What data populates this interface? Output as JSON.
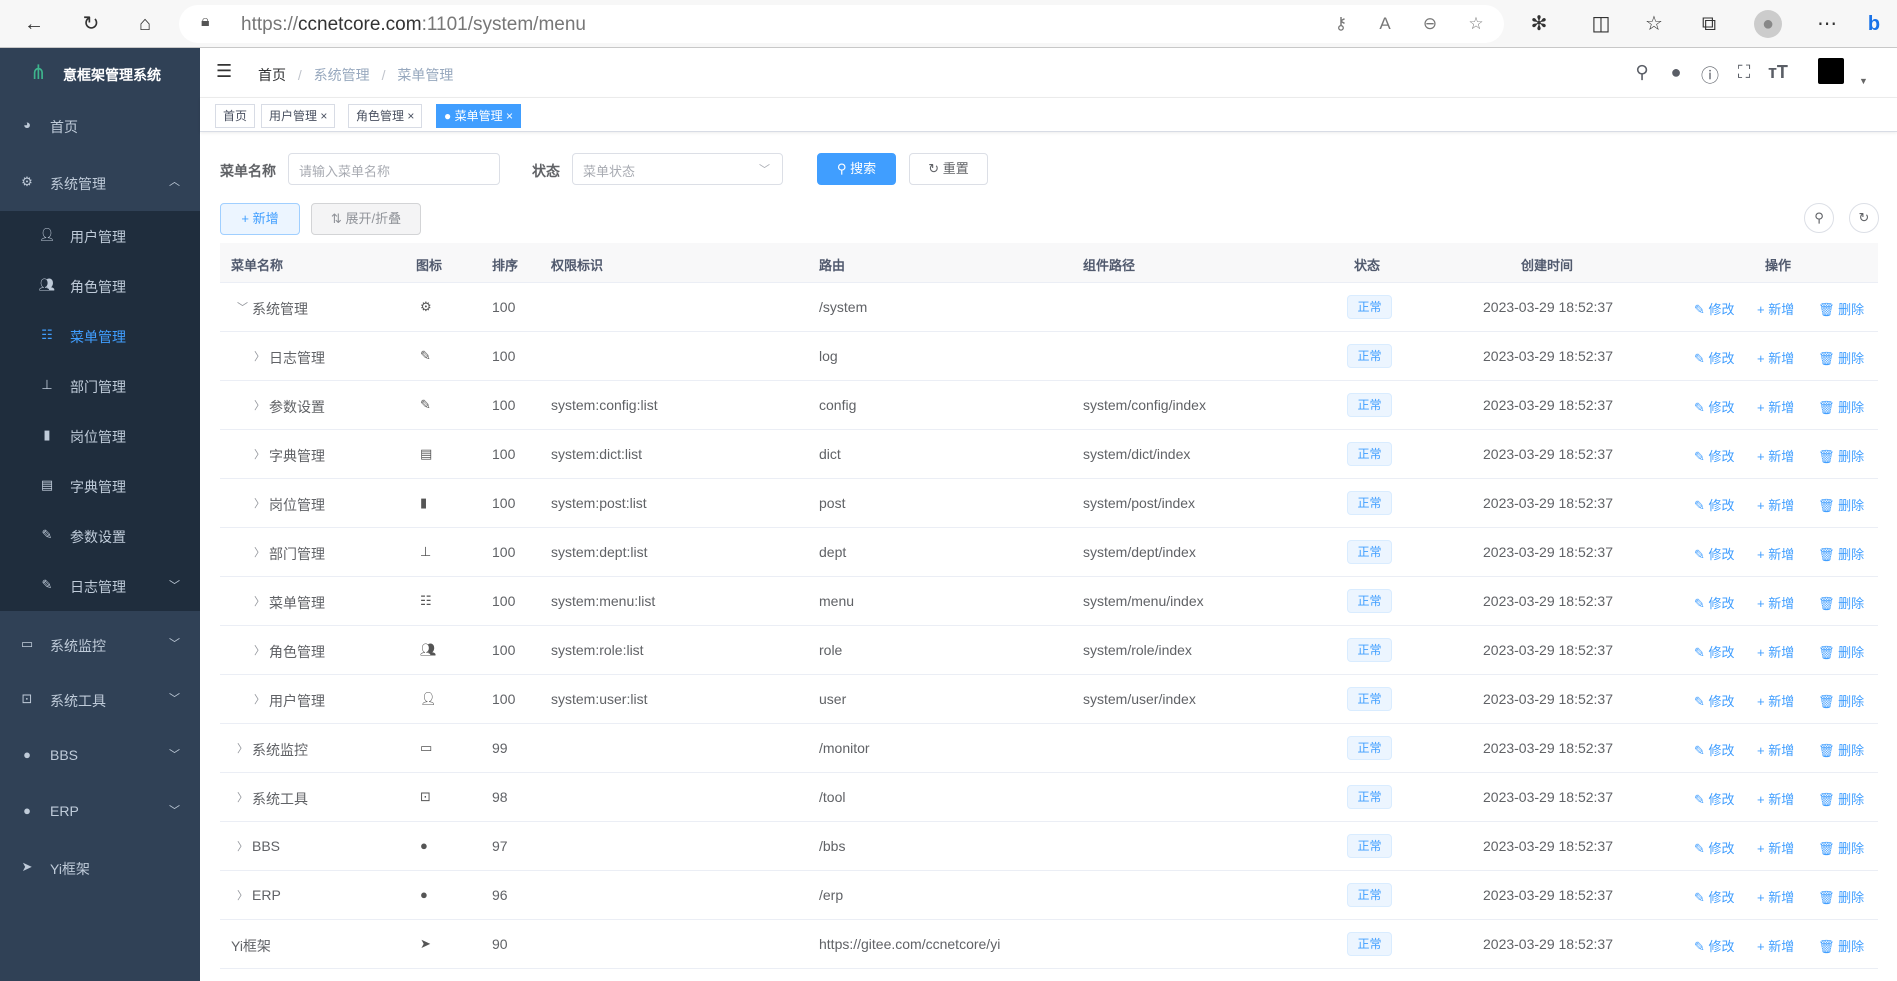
{
  "browser": {
    "url_prefix": "https://",
    "url_host": "ccnetcore.com",
    "url_rest": ":1101/system/menu"
  },
  "app": {
    "title": "意框架管理系统"
  },
  "sidebar": {
    "items": [
      {
        "label": "首页",
        "icon": "dashboard-icon"
      },
      {
        "label": "系统管理",
        "icon": "gear-icon",
        "expanded": true
      },
      {
        "label": "系统监控",
        "icon": "monitor-icon"
      },
      {
        "label": "系统工具",
        "icon": "toolbox-icon"
      },
      {
        "label": "BBS",
        "icon": "globe-icon"
      },
      {
        "label": "ERP",
        "icon": "globe-icon"
      },
      {
        "label": "Yi框架",
        "icon": "send-icon"
      }
    ],
    "sub_items": [
      {
        "label": "用户管理",
        "icon": "user-icon"
      },
      {
        "label": "角色管理",
        "icon": "users-icon"
      },
      {
        "label": "菜单管理",
        "icon": "tree-table-icon",
        "active": true
      },
      {
        "label": "部门管理",
        "icon": "org-tree-icon"
      },
      {
        "label": "岗位管理",
        "icon": "post-icon"
      },
      {
        "label": "字典管理",
        "icon": "dict-icon"
      },
      {
        "label": "参数设置",
        "icon": "edit-icon"
      },
      {
        "label": "日志管理",
        "icon": "log-icon"
      }
    ]
  },
  "breadcrumb": [
    "首页",
    "系统管理",
    "菜单管理"
  ],
  "tags": [
    {
      "label": "首页"
    },
    {
      "label": "用户管理",
      "closable": true
    },
    {
      "label": "角色管理",
      "closable": true
    },
    {
      "label": "菜单管理",
      "closable": true,
      "active": true
    }
  ],
  "search": {
    "name_label": "菜单名称",
    "name_placeholder": "请输入菜单名称",
    "status_label": "状态",
    "status_placeholder": "菜单状态",
    "search_btn": "搜索",
    "reset_btn": "重置"
  },
  "toolbar": {
    "add": "新增",
    "expand": "展开/折叠"
  },
  "table": {
    "headers": [
      "菜单名称",
      "图标",
      "排序",
      "权限标识",
      "路由",
      "组件路径",
      "状态",
      "创建时间",
      "操作"
    ],
    "ops": [
      "修改",
      "新增",
      "删除"
    ],
    "rows": [
      {
        "name": "系统管理",
        "level": 0,
        "arrow": "down",
        "icon": "gear",
        "sort": "100",
        "perms": "",
        "route": "/system",
        "component": "",
        "status": "正常",
        "created": "2023-03-29 18:52:37"
      },
      {
        "name": "日志管理",
        "level": 1,
        "arrow": "right",
        "icon": "log",
        "sort": "100",
        "perms": "",
        "route": "log",
        "component": "",
        "status": "正常",
        "created": "2023-03-29 18:52:37"
      },
      {
        "name": "参数设置",
        "level": 1,
        "arrow": "right",
        "icon": "edit",
        "sort": "100",
        "perms": "system:config:list",
        "route": "config",
        "component": "system/config/index",
        "status": "正常",
        "created": "2023-03-29 18:52:37"
      },
      {
        "name": "字典管理",
        "level": 1,
        "arrow": "right",
        "icon": "dict",
        "sort": "100",
        "perms": "system:dict:list",
        "route": "dict",
        "component": "system/dict/index",
        "status": "正常",
        "created": "2023-03-29 18:52:37"
      },
      {
        "name": "岗位管理",
        "level": 1,
        "arrow": "right",
        "icon": "post",
        "sort": "100",
        "perms": "system:post:list",
        "route": "post",
        "component": "system/post/index",
        "status": "正常",
        "created": "2023-03-29 18:52:37"
      },
      {
        "name": "部门管理",
        "level": 1,
        "arrow": "right",
        "icon": "tree",
        "sort": "100",
        "perms": "system:dept:list",
        "route": "dept",
        "component": "system/dept/index",
        "status": "正常",
        "created": "2023-03-29 18:52:37"
      },
      {
        "name": "菜单管理",
        "level": 1,
        "arrow": "right",
        "icon": "tree-table",
        "sort": "100",
        "perms": "system:menu:list",
        "route": "menu",
        "component": "system/menu/index",
        "status": "正常",
        "created": "2023-03-29 18:52:37"
      },
      {
        "name": "角色管理",
        "level": 1,
        "arrow": "right",
        "icon": "peoples",
        "sort": "100",
        "perms": "system:role:list",
        "route": "role",
        "component": "system/role/index",
        "status": "正常",
        "created": "2023-03-29 18:52:37"
      },
      {
        "name": "用户管理",
        "level": 1,
        "arrow": "right",
        "icon": "user",
        "sort": "100",
        "perms": "system:user:list",
        "route": "user",
        "component": "system/user/index",
        "status": "正常",
        "created": "2023-03-29 18:52:37"
      },
      {
        "name": "系统监控",
        "level": 0,
        "arrow": "right",
        "icon": "monitor",
        "sort": "99",
        "perms": "",
        "route": "/monitor",
        "component": "",
        "status": "正常",
        "created": "2023-03-29 18:52:37"
      },
      {
        "name": "系统工具",
        "level": 0,
        "arrow": "right",
        "icon": "tool",
        "sort": "98",
        "perms": "",
        "route": "/tool",
        "component": "",
        "status": "正常",
        "created": "2023-03-29 18:52:37"
      },
      {
        "name": "BBS",
        "level": 0,
        "arrow": "right",
        "icon": "globe",
        "sort": "97",
        "perms": "",
        "route": "/bbs",
        "component": "",
        "status": "正常",
        "created": "2023-03-29 18:52:37"
      },
      {
        "name": "ERP",
        "level": 0,
        "arrow": "right",
        "icon": "globe",
        "sort": "96",
        "perms": "",
        "route": "/erp",
        "component": "",
        "status": "正常",
        "created": "2023-03-29 18:52:37"
      },
      {
        "name": "Yi框架",
        "level": 0,
        "arrow": "none",
        "icon": "send",
        "sort": "90",
        "perms": "",
        "route": "https://gitee.com/ccnetcore/yi",
        "component": "",
        "status": "正常",
        "created": "2023-03-29 18:52:37"
      }
    ]
  },
  "colors": {
    "sidebar_bg": "#304156",
    "submenu_bg": "#1f2d3d",
    "primary": "#409eff"
  }
}
